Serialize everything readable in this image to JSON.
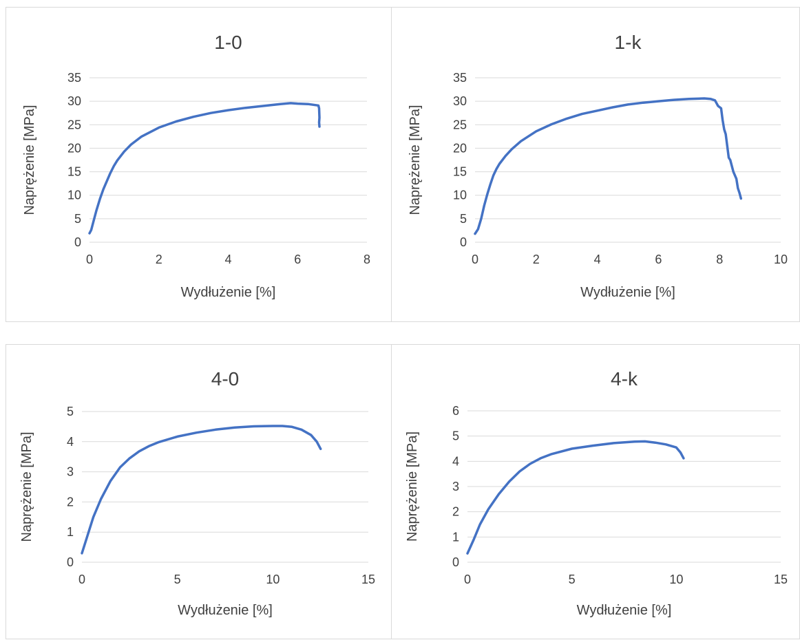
{
  "chart_data": [
    {
      "type": "line",
      "title": "1-0",
      "xlabel": "Wydłużenie [%]",
      "ylabel": "Naprężenie [MPa]",
      "xlim": [
        0,
        8
      ],
      "ylim": [
        0,
        35
      ],
      "xticks": [
        "0",
        "2",
        "4",
        "6",
        "8"
      ],
      "yticks": [
        "0",
        "5",
        "10",
        "15",
        "20",
        "25",
        "30",
        "35"
      ],
      "grid": true,
      "legend": "none",
      "color": "#4472c4",
      "series": [
        {
          "x": [
            0.0,
            0.05,
            0.1,
            0.2,
            0.3,
            0.4,
            0.5,
            0.6,
            0.7,
            0.8,
            1.0,
            1.2,
            1.5,
            2.0,
            2.5,
            3.0,
            3.5,
            4.0,
            4.5,
            5.0,
            5.5,
            5.8,
            6.0,
            6.3,
            6.6,
            6.62,
            6.63,
            6.62,
            6.63
          ],
          "y": [
            1.9,
            2.6,
            4.0,
            6.8,
            9.2,
            11.3,
            13.0,
            14.7,
            16.2,
            17.4,
            19.3,
            20.8,
            22.5,
            24.4,
            25.7,
            26.7,
            27.5,
            28.1,
            28.6,
            29.0,
            29.4,
            29.6,
            29.5,
            29.4,
            29.1,
            28.5,
            26.5,
            25.5,
            24.6
          ]
        }
      ]
    },
    {
      "type": "line",
      "title": "1-k",
      "xlabel": "Wydłużenie [%]",
      "ylabel": "Naprężenie [MPa]",
      "xlim": [
        0,
        10
      ],
      "ylim": [
        0,
        35
      ],
      "xticks": [
        "0",
        "2",
        "4",
        "6",
        "8",
        "10"
      ],
      "yticks": [
        "0",
        "5",
        "10",
        "15",
        "20",
        "25",
        "30",
        "35"
      ],
      "grid": true,
      "legend": "none",
      "color": "#4472c4",
      "series": [
        {
          "x": [
            0.0,
            0.1,
            0.2,
            0.3,
            0.4,
            0.5,
            0.6,
            0.7,
            0.8,
            1.0,
            1.2,
            1.5,
            2.0,
            2.5,
            3.0,
            3.5,
            4.0,
            4.5,
            5.0,
            5.5,
            6.0,
            6.5,
            7.0,
            7.5,
            7.7,
            7.85,
            7.95,
            8.05,
            8.1,
            8.15,
            8.2,
            8.25,
            8.3,
            8.35,
            8.45,
            8.55,
            8.6,
            8.65,
            8.7
          ],
          "y": [
            1.8,
            2.8,
            5.0,
            7.8,
            10.2,
            12.3,
            14.2,
            15.6,
            16.7,
            18.4,
            19.8,
            21.5,
            23.6,
            25.1,
            26.3,
            27.3,
            28.0,
            28.7,
            29.3,
            29.7,
            30.0,
            30.3,
            30.5,
            30.6,
            30.5,
            30.2,
            29.0,
            28.5,
            26.0,
            24.0,
            23.0,
            20.5,
            18.0,
            17.5,
            15.0,
            13.5,
            11.5,
            10.5,
            9.3
          ]
        }
      ]
    },
    {
      "type": "line",
      "title": "4-0",
      "xlabel": "Wydłużenie [%]",
      "ylabel": "Naprężenie [MPa]",
      "xlim": [
        0,
        15
      ],
      "ylim": [
        0,
        5
      ],
      "xticks": [
        "0",
        "5",
        "10",
        "15"
      ],
      "yticks": [
        "0",
        "1",
        "2",
        "3",
        "4",
        "5"
      ],
      "grid": true,
      "legend": "none",
      "color": "#4472c4",
      "series": [
        {
          "x": [
            0.0,
            0.3,
            0.6,
            1.0,
            1.5,
            2.0,
            2.5,
            3.0,
            3.5,
            4.0,
            5.0,
            6.0,
            7.0,
            8.0,
            9.0,
            10.0,
            10.5,
            11.0,
            11.5,
            12.0,
            12.3,
            12.5
          ],
          "y": [
            0.3,
            0.9,
            1.5,
            2.1,
            2.7,
            3.15,
            3.45,
            3.68,
            3.85,
            3.98,
            4.17,
            4.3,
            4.4,
            4.47,
            4.51,
            4.52,
            4.52,
            4.49,
            4.4,
            4.22,
            4.0,
            3.76
          ]
        }
      ]
    },
    {
      "type": "line",
      "title": "4-k",
      "xlabel": "Wydłużenie [%]",
      "ylabel": "Naprężenie [MPa]",
      "xlim": [
        0,
        15
      ],
      "ylim": [
        0,
        6
      ],
      "xticks": [
        "0",
        "5",
        "10",
        "15"
      ],
      "yticks": [
        "0",
        "1",
        "2",
        "3",
        "4",
        "5",
        "6"
      ],
      "grid": true,
      "legend": "none",
      "color": "#4472c4",
      "series": [
        {
          "x": [
            0.0,
            0.3,
            0.6,
            1.0,
            1.5,
            2.0,
            2.5,
            3.0,
            3.5,
            4.0,
            5.0,
            6.0,
            7.0,
            8.0,
            8.5,
            9.0,
            9.5,
            10.0,
            10.2,
            10.35
          ],
          "y": [
            0.35,
            0.9,
            1.5,
            2.1,
            2.7,
            3.2,
            3.6,
            3.9,
            4.12,
            4.28,
            4.5,
            4.62,
            4.72,
            4.78,
            4.79,
            4.74,
            4.67,
            4.55,
            4.35,
            4.12
          ]
        }
      ]
    }
  ]
}
